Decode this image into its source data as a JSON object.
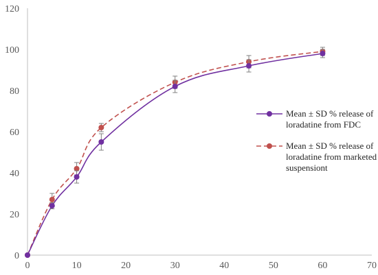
{
  "chart_data": {
    "type": "line",
    "title": "",
    "xlabel": "",
    "ylabel": "",
    "xlim": [
      0,
      70
    ],
    "ylim": [
      0,
      120
    ],
    "x_ticks": [
      0,
      10,
      20,
      30,
      40,
      50,
      60,
      70
    ],
    "y_ticks": [
      0,
      20,
      40,
      60,
      80,
      100,
      120
    ],
    "grid": false,
    "legend_position": "right",
    "series": [
      {
        "name": "Mean ± SD % release of loradatine from FDC",
        "legend_lines": [
          "Mean ± SD % release of",
          "loradatine from FDC"
        ],
        "color": "#7030A0",
        "line_style": "solid",
        "x": [
          0,
          5,
          10,
          15,
          30,
          45,
          60
        ],
        "y": [
          0,
          24,
          38,
          55,
          82,
          92,
          98
        ],
        "error": [
          0,
          1.5,
          3,
          4,
          3,
          3,
          2
        ]
      },
      {
        "name": "Mean ± SD % release of loradatine from marketed suspensiont",
        "legend_lines": [
          "Mean ± SD % release of",
          "loradatine from marketed",
          "suspensiont"
        ],
        "color": "#C0504D",
        "line_style": "dashed",
        "x": [
          0,
          5,
          10,
          15,
          30,
          45,
          60
        ],
        "y": [
          0,
          27,
          42,
          62,
          84,
          94,
          99
        ],
        "error": [
          0,
          3,
          3,
          2,
          3,
          3,
          2
        ]
      }
    ]
  }
}
